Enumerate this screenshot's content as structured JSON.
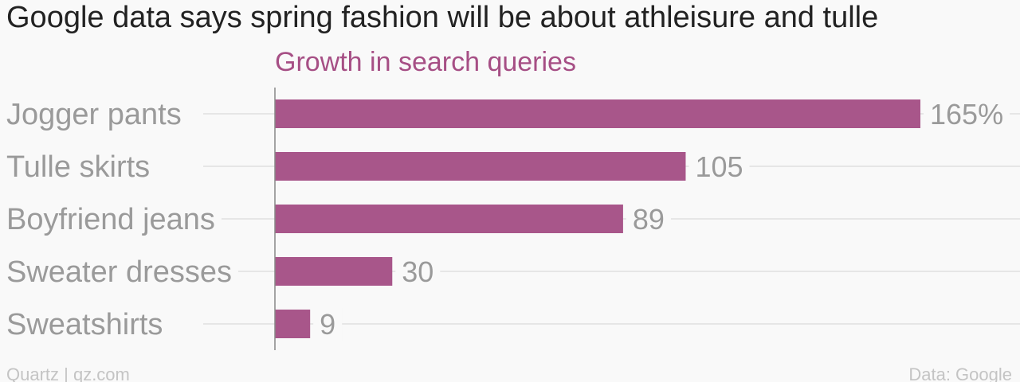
{
  "header": {
    "title": "Google data says spring fashion will be about athleisure and tulle"
  },
  "chart_data": {
    "type": "bar",
    "orientation": "horizontal",
    "title": "Google data says spring fashion will be about athleisure and tulle",
    "subtitle": "Growth in search queries",
    "categories": [
      "Jogger pants",
      "Tulle skirts",
      "Boyfriend jeans",
      "Sweater dresses",
      "Sweatshirts"
    ],
    "values": [
      165,
      105,
      89,
      30,
      9
    ],
    "value_labels": [
      "165%",
      "105",
      "89",
      "30",
      "9"
    ],
    "unit": "%",
    "xlim": [
      0,
      165
    ],
    "bar_color": "#a8568a",
    "grid": true,
    "legend": "none"
  },
  "footer": {
    "source_left": "Quartz | qz.com",
    "source_right": "Data: Google"
  },
  "colors": {
    "background": "#f9f9f9",
    "bar": "#a8568a",
    "subtitle": "#a64f85",
    "label": "#9a9a9a",
    "title": "#222222"
  }
}
